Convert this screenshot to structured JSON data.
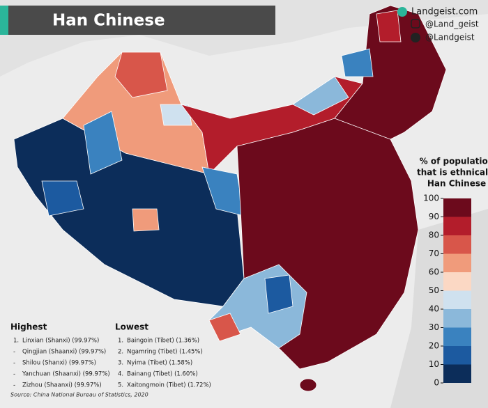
{
  "header": {
    "title": "Han Chinese",
    "social": [
      "Landgeist.com",
      "@Land_geist",
      "@Landgeist"
    ]
  },
  "legend": {
    "title": [
      "% of population",
      "that is ethnically",
      "Han Chinese"
    ],
    "ticks": [
      0,
      10,
      20,
      30,
      40,
      50,
      60,
      70,
      80,
      90,
      100
    ],
    "colors": [
      "#0c2d5a",
      "#1c5aa0",
      "#3a82bf",
      "#8bb8da",
      "#cfe1ef",
      "#fbd8c4",
      "#f09b7b",
      "#d8564a",
      "#b31d2b",
      "#6c0a1c"
    ]
  },
  "highest": {
    "heading": "Highest",
    "items": [
      {
        "marker": "1.",
        "text": "Linxian (Shanxi) (99.97%)"
      },
      {
        "marker": "-",
        "text": "Qingjian (Shaanxi) (99.97%)"
      },
      {
        "marker": "-",
        "text": "Shilou (Shanxi) (99.97%)"
      },
      {
        "marker": "-",
        "text": "Yanchuan (Shaanxi) (99.97%)"
      },
      {
        "marker": "-",
        "text": "Zizhou (Shaanxi) (99.97%)"
      }
    ]
  },
  "lowest": {
    "heading": "Lowest",
    "items": [
      {
        "marker": "1.",
        "text": "Baingoin (Tibet) (1.36%)"
      },
      {
        "marker": "2.",
        "text": "Ngamring (Tibet) (1.45%)"
      },
      {
        "marker": "3.",
        "text": "Nyima (Tibet) (1.58%)"
      },
      {
        "marker": "4.",
        "text": "Bainang (Tibet) (1.60%)"
      },
      {
        "marker": "5.",
        "text": "Xaitongmoin (Tibet) (1.72%)"
      }
    ]
  },
  "source": "Source: China National Bureau of Statistics, 2020"
}
